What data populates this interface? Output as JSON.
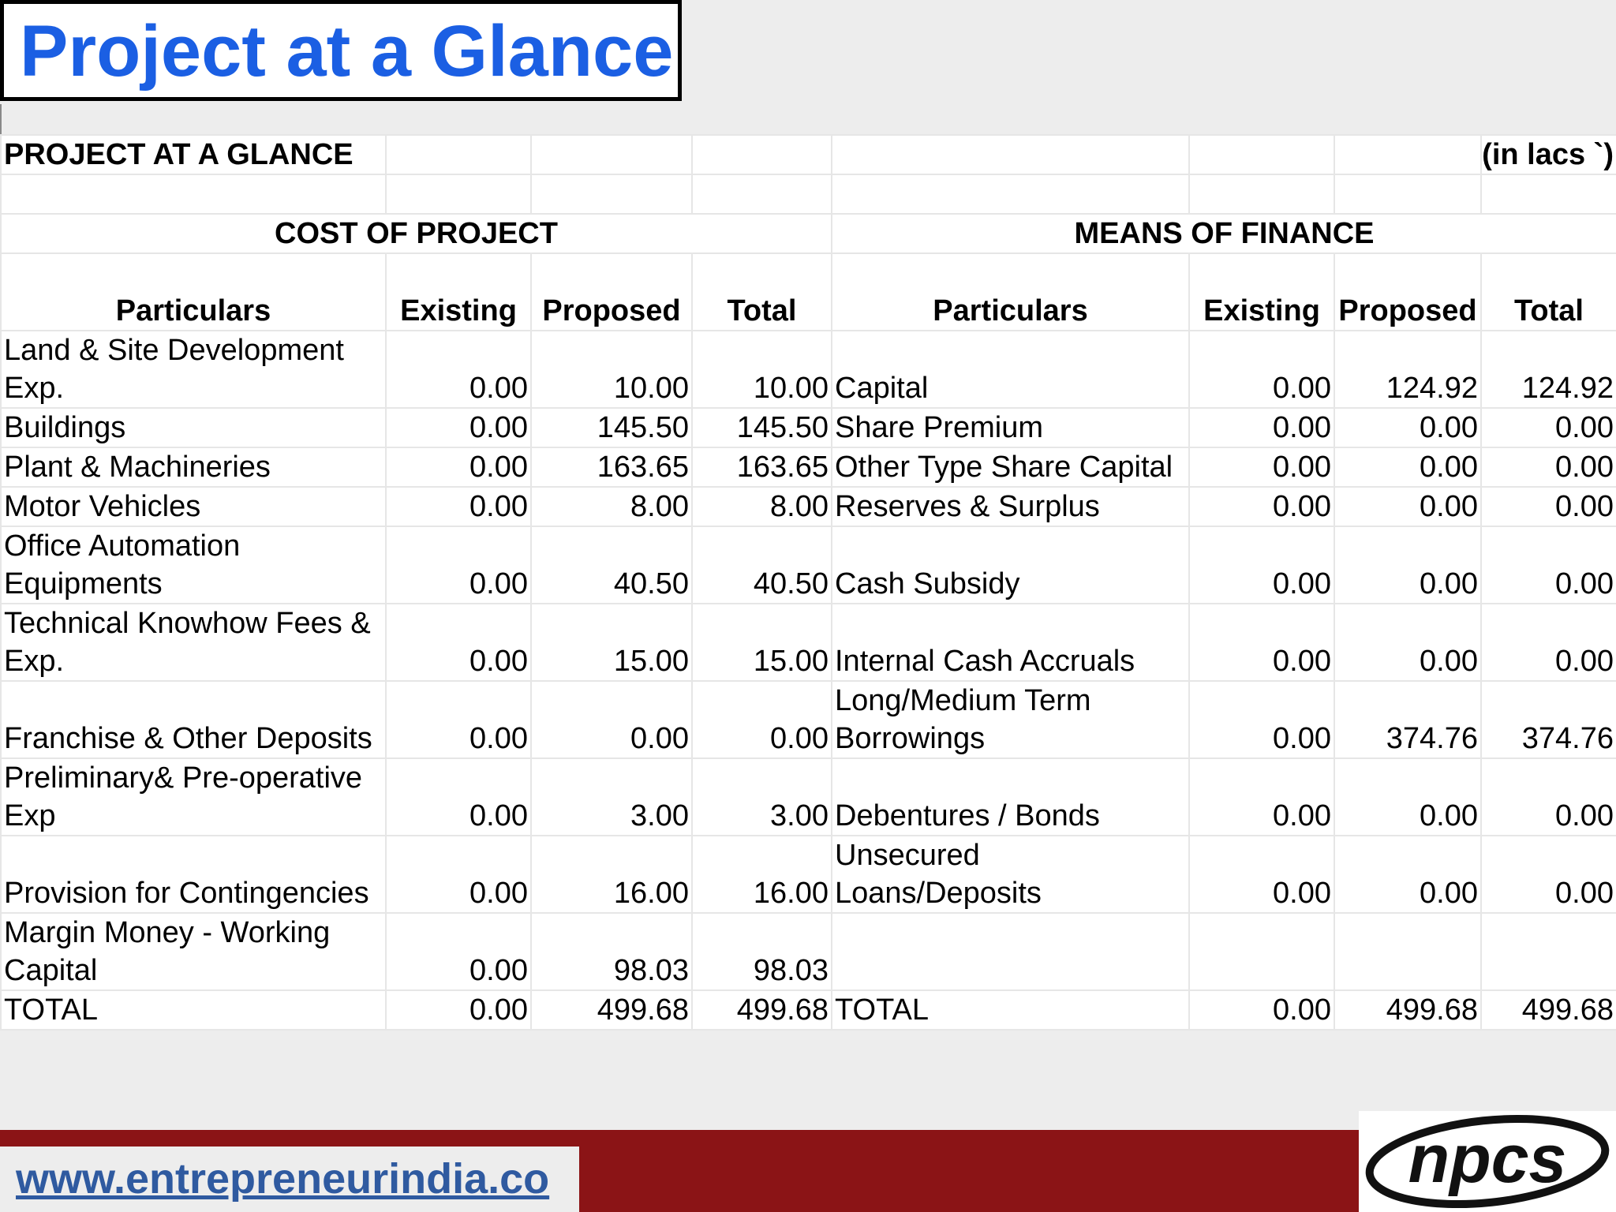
{
  "slide": {
    "title": "Project at a Glance",
    "footer_url": "www.entrepreneurindia.co",
    "logo_text": "npcs"
  },
  "sheet": {
    "title": "PROJECT AT A GLANCE",
    "unit": "(` in lacs)",
    "cost_heading": "COST OF PROJECT",
    "finance_heading": "MEANS OF FINANCE",
    "headers": {
      "cost": [
        "Particulars",
        "Existing",
        "Proposed",
        "Total"
      ],
      "finance": [
        "Particulars",
        "Existing",
        "Proposed",
        "Total"
      ]
    },
    "rows": [
      {
        "cost": [
          "Land & Site Development Exp.",
          "0.00",
          "10.00",
          "10.00"
        ],
        "finance": [
          "Capital",
          "0.00",
          "124.92",
          "124.92"
        ]
      },
      {
        "cost": [
          "Buildings",
          "0.00",
          "145.50",
          "145.50"
        ],
        "finance": [
          "Share Premium",
          "0.00",
          "0.00",
          "0.00"
        ]
      },
      {
        "cost": [
          "Plant & Machineries",
          "0.00",
          "163.65",
          "163.65"
        ],
        "finance": [
          "Other Type Share Capital",
          "0.00",
          "0.00",
          "0.00"
        ]
      },
      {
        "cost": [
          "Motor Vehicles",
          "0.00",
          "8.00",
          "8.00"
        ],
        "finance": [
          "Reserves & Surplus",
          "0.00",
          "0.00",
          "0.00"
        ]
      },
      {
        "cost": [
          "Office Automation Equipments",
          "0.00",
          "40.50",
          "40.50"
        ],
        "finance": [
          "Cash Subsidy",
          "0.00",
          "0.00",
          "0.00"
        ]
      },
      {
        "cost": [
          "Technical Knowhow Fees & Exp.",
          "0.00",
          "15.00",
          "15.00"
        ],
        "finance": [
          "Internal Cash Accruals",
          "0.00",
          "0.00",
          "0.00"
        ]
      },
      {
        "cost": [
          "Franchise & Other Deposits",
          "0.00",
          "0.00",
          "0.00"
        ],
        "finance": [
          "Long/Medium Term Borrowings",
          "0.00",
          "374.76",
          "374.76"
        ]
      },
      {
        "cost": [
          "Preliminary& Pre-operative Exp",
          "0.00",
          "3.00",
          "3.00"
        ],
        "finance": [
          "Debentures / Bonds",
          "0.00",
          "0.00",
          "0.00"
        ]
      },
      {
        "cost": [
          "Provision for Contingencies",
          "0.00",
          "16.00",
          "16.00"
        ],
        "finance": [
          "Unsecured Loans/Deposits",
          "0.00",
          "0.00",
          "0.00"
        ]
      },
      {
        "cost": [
          "Margin Money - Working Capital",
          "0.00",
          "98.03",
          "98.03"
        ],
        "finance": [
          "",
          "",
          "",
          ""
        ]
      }
    ],
    "total": {
      "cost": [
        "TOTAL",
        "0.00",
        "499.68",
        "499.68"
      ],
      "finance": [
        "TOTAL",
        "0.00",
        "499.68",
        "499.68"
      ]
    }
  }
}
